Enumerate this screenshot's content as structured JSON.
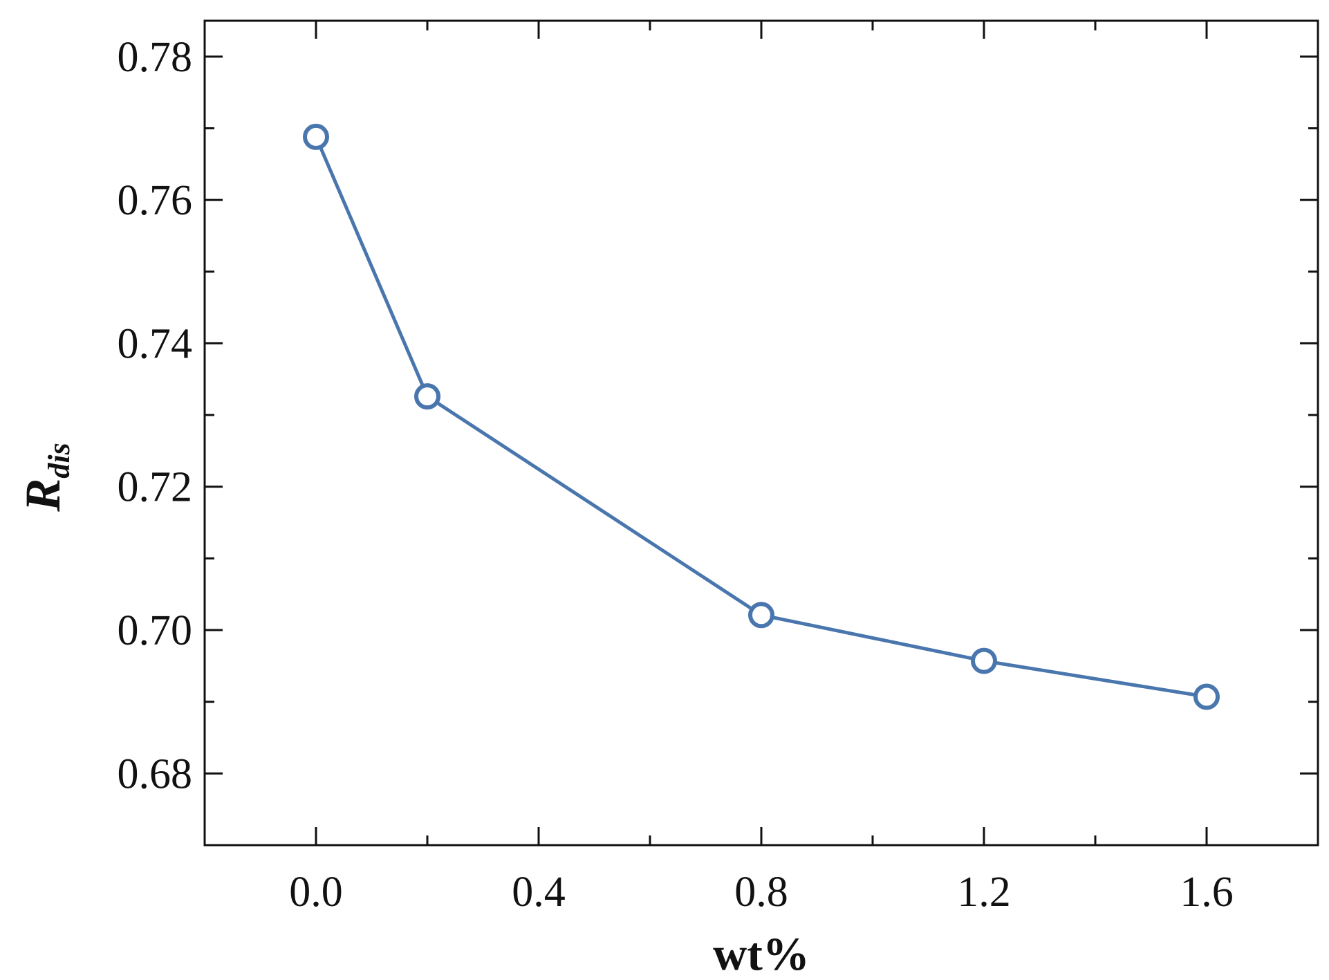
{
  "chart_data": {
    "type": "line",
    "title": "",
    "xlabel": "wt%",
    "ylabel": {
      "main": "R",
      "subscript": "dis"
    },
    "x": [
      0.0,
      0.2,
      0.8,
      1.2,
      1.6
    ],
    "series": [
      {
        "name": "R_dis",
        "values": [
          0.7688,
          0.7326,
          0.7021,
          0.6957,
          0.6907
        ],
        "color": "#4a76ae"
      }
    ],
    "xlim": [
      -0.2,
      1.8
    ],
    "ylim": [
      0.67,
      0.785
    ],
    "x_ticks": [
      "0.0",
      "0.4",
      "0.8",
      "1.2",
      "1.6"
    ],
    "x_tick_values": [
      0.0,
      0.4,
      0.8,
      1.2,
      1.6
    ],
    "y_ticks": [
      "0.68",
      "0.70",
      "0.72",
      "0.74",
      "0.76",
      "0.78"
    ],
    "y_tick_values": [
      0.68,
      0.7,
      0.72,
      0.74,
      0.76,
      0.78
    ],
    "marker": "open-circle",
    "grid": false,
    "legend": "none"
  }
}
